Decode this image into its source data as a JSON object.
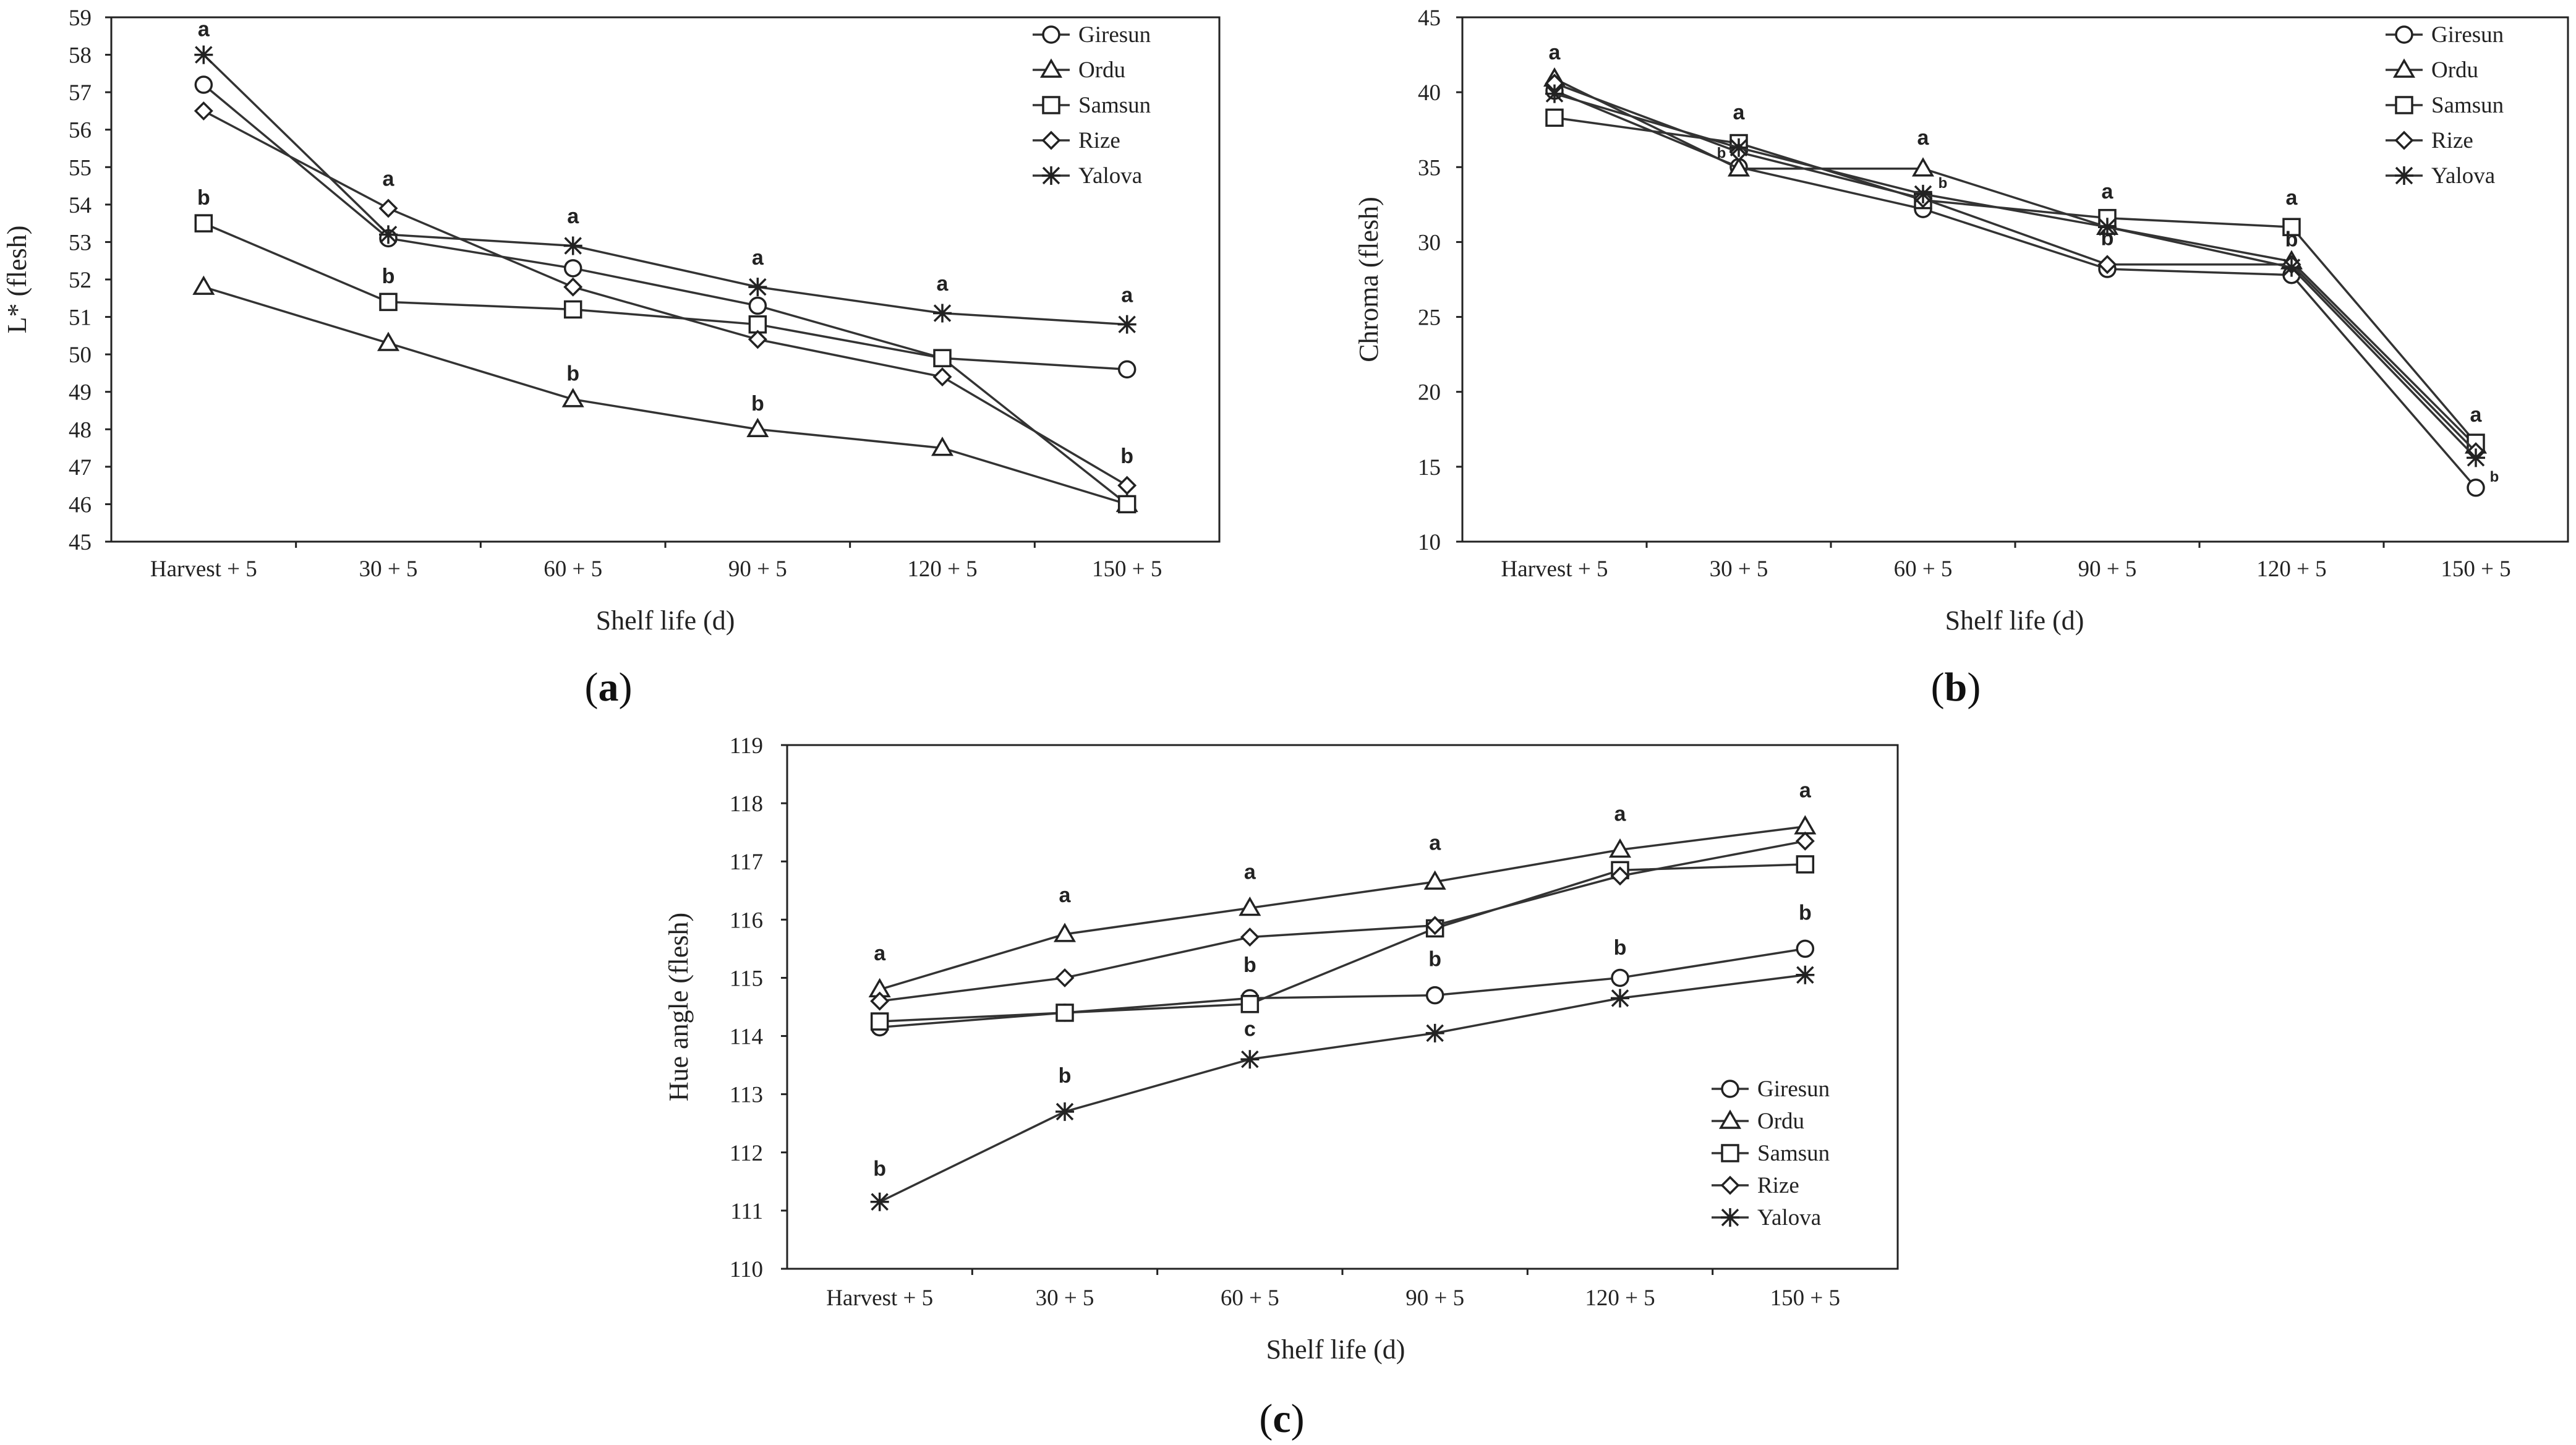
{
  "chart_data": [
    {
      "type": "line",
      "panel_label": "a",
      "xlabel": "Shelf life (d)",
      "ylabel": "L* (flesh)",
      "ylim": [
        45,
        59
      ],
      "yticks": [
        45,
        46,
        47,
        48,
        49,
        50,
        51,
        52,
        53,
        54,
        55,
        56,
        57,
        58,
        59
      ],
      "categories": [
        "Harvest + 5",
        "30 + 5",
        "60 + 5",
        "90 + 5",
        "120 + 5",
        "150 + 5"
      ],
      "legend_position": "top-right",
      "series": [
        {
          "name": "Giresun",
          "marker": "circle",
          "values": [
            57.2,
            53.1,
            52.3,
            51.3,
            49.9,
            49.6
          ]
        },
        {
          "name": "Ordu",
          "marker": "triangle",
          "values": [
            51.8,
            50.3,
            48.8,
            48.0,
            47.5,
            46.0
          ]
        },
        {
          "name": "Samsun",
          "marker": "square",
          "values": [
            53.5,
            51.4,
            51.2,
            50.8,
            49.9,
            46.0
          ]
        },
        {
          "name": "Rize",
          "marker": "diamond",
          "values": [
            56.5,
            53.9,
            51.8,
            50.4,
            49.4,
            46.5
          ]
        },
        {
          "name": "Yalova",
          "marker": "star",
          "values": [
            58.0,
            53.2,
            52.9,
            51.8,
            51.1,
            50.8
          ]
        }
      ],
      "annotations": [
        {
          "text": "a",
          "x": 0,
          "y": 58.5
        },
        {
          "text": "b",
          "x": 0,
          "y": 54.0
        },
        {
          "text": "a",
          "x": 1,
          "y": 54.5
        },
        {
          "text": "b",
          "x": 1,
          "y": 51.9
        },
        {
          "text": "a",
          "x": 2,
          "y": 53.5
        },
        {
          "text": "b",
          "x": 2,
          "y": 49.3
        },
        {
          "text": "a",
          "x": 3,
          "y": 52.4
        },
        {
          "text": "b",
          "x": 3,
          "y": 48.5
        },
        {
          "text": "a",
          "x": 4,
          "y": 51.7
        },
        {
          "text": "a",
          "x": 5,
          "y": 51.4
        },
        {
          "text": "b",
          "x": 5,
          "y": 47.1
        }
      ]
    },
    {
      "type": "line",
      "panel_label": "b",
      "xlabel": "Shelf life (d)",
      "ylabel": "Chroma (flesh)",
      "ylim": [
        10,
        45
      ],
      "yticks": [
        10,
        15,
        20,
        25,
        30,
        35,
        40,
        45
      ],
      "categories": [
        "Harvest + 5",
        "30 + 5",
        "60 + 5",
        "90 + 5",
        "120 + 5",
        "150 + 5"
      ],
      "legend_position": "top-right",
      "series": [
        {
          "name": "Giresun",
          "marker": "circle",
          "values": [
            40.1,
            35.0,
            32.2,
            28.2,
            27.8,
            13.6
          ]
        },
        {
          "name": "Ordu",
          "marker": "triangle",
          "values": [
            40.9,
            34.9,
            34.9,
            31.0,
            28.7,
            16.4
          ]
        },
        {
          "name": "Samsun",
          "marker": "square",
          "values": [
            38.3,
            36.6,
            32.8,
            31.6,
            31.0,
            16.6
          ]
        },
        {
          "name": "Rize",
          "marker": "diamond",
          "values": [
            40.6,
            36.0,
            32.9,
            28.5,
            28.5,
            16.0
          ]
        },
        {
          "name": "Yalova",
          "marker": "star",
          "values": [
            39.9,
            36.3,
            33.2,
            31.0,
            28.3,
            15.6
          ]
        }
      ],
      "annotations": [
        {
          "text": "a",
          "x": 0,
          "y": 42.2
        },
        {
          "text": "a",
          "x": 1,
          "y": 38.2
        },
        {
          "text": "b",
          "x": 1,
          "y": 35.6,
          "small": true,
          "dx": -28
        },
        {
          "text": "a",
          "x": 2,
          "y": 36.5
        },
        {
          "text": "b",
          "x": 2,
          "y": 33.6,
          "small": true,
          "dx": 32
        },
        {
          "text": "a",
          "x": 3,
          "y": 32.9
        },
        {
          "text": "b",
          "x": 3,
          "y": 29.8
        },
        {
          "text": "a",
          "x": 4,
          "y": 32.5
        },
        {
          "text": "b",
          "x": 4,
          "y": 29.7
        },
        {
          "text": "a",
          "x": 5,
          "y": 18.0
        },
        {
          "text": "b",
          "x": 5,
          "y": 14.0,
          "small": true,
          "dx": 30
        }
      ]
    },
    {
      "type": "line",
      "panel_label": "c",
      "xlabel": "Shelf life (d)",
      "ylabel": "Hue angle (flesh)",
      "ylim": [
        110,
        119
      ],
      "yticks": [
        110,
        111,
        112,
        113,
        114,
        115,
        116,
        117,
        118,
        119
      ],
      "categories": [
        "Harvest + 5",
        "30 + 5",
        "60 + 5",
        "90 + 5",
        "120 + 5",
        "150 + 5"
      ],
      "legend_position": "bottom-right",
      "series": [
        {
          "name": "Giresun",
          "marker": "circle",
          "values": [
            114.15,
            114.4,
            114.65,
            114.7,
            115.0,
            115.5
          ]
        },
        {
          "name": "Ordu",
          "marker": "triangle",
          "values": [
            114.8,
            115.75,
            116.2,
            116.65,
            117.2,
            117.6
          ]
        },
        {
          "name": "Samsun",
          "marker": "square",
          "values": [
            114.25,
            114.4,
            114.55,
            115.85,
            116.85,
            116.95
          ]
        },
        {
          "name": "Rize",
          "marker": "diamond",
          "values": [
            114.6,
            115.0,
            115.7,
            115.9,
            116.75,
            117.35
          ]
        },
        {
          "name": "Yalova",
          "marker": "star",
          "values": [
            111.15,
            112.7,
            113.6,
            114.05,
            114.65,
            115.05
          ]
        }
      ],
      "annotations": [
        {
          "text": "a",
          "x": 0,
          "y": 115.3
        },
        {
          "text": "b",
          "x": 0,
          "y": 111.6
        },
        {
          "text": "a",
          "x": 1,
          "y": 116.3
        },
        {
          "text": "b",
          "x": 1,
          "y": 113.2
        },
        {
          "text": "a",
          "x": 2,
          "y": 116.7
        },
        {
          "text": "b",
          "x": 2,
          "y": 115.1
        },
        {
          "text": "c",
          "x": 2,
          "y": 114.0
        },
        {
          "text": "a",
          "x": 3,
          "y": 117.2
        },
        {
          "text": "b",
          "x": 3,
          "y": 115.2
        },
        {
          "text": "a",
          "x": 4,
          "y": 117.7
        },
        {
          "text": "b",
          "x": 4,
          "y": 115.4
        },
        {
          "text": "a",
          "x": 5,
          "y": 118.1
        },
        {
          "text": "b",
          "x": 5,
          "y": 116.0
        }
      ]
    }
  ]
}
